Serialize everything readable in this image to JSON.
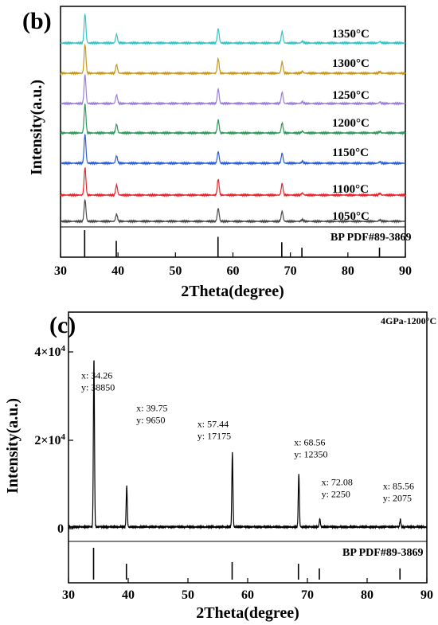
{
  "chart_data": [
    {
      "panel": "(b)",
      "type": "line",
      "xlabel": "2Theta(degree)",
      "ylabel": "Intensity(a.u.)",
      "xlim": [
        30,
        90
      ],
      "x_ticks": [
        "30",
        "40",
        "50",
        "60",
        "70",
        "80",
        "90"
      ],
      "peaks_2theta": [
        34.26,
        39.75,
        57.44,
        68.56,
        72.08,
        85.56
      ],
      "series": [
        {
          "name": "1050°C",
          "color": "#4a4a4a",
          "peak_heights": [
            0.75,
            0.25,
            0.45,
            0.35,
            0.06,
            0.05
          ]
        },
        {
          "name": "1100°C",
          "color": "#e8262b",
          "peak_heights": [
            0.95,
            0.35,
            0.55,
            0.4,
            0.07,
            0.06
          ]
        },
        {
          "name": "1150°C",
          "color": "#2e5fd4",
          "peak_heights": [
            1.0,
            0.25,
            0.4,
            0.35,
            0.06,
            0.05
          ]
        },
        {
          "name": "1200°C",
          "color": "#2e9a5a",
          "peak_heights": [
            1.0,
            0.3,
            0.45,
            0.35,
            0.06,
            0.05
          ]
        },
        {
          "name": "1250°C",
          "color": "#9b7fd8",
          "peak_heights": [
            1.0,
            0.3,
            0.5,
            0.4,
            0.06,
            0.05
          ]
        },
        {
          "name": "1300°C",
          "color": "#c8981c",
          "peak_heights": [
            1.0,
            0.3,
            0.5,
            0.4,
            0.06,
            0.05
          ]
        },
        {
          "name": "1350°C",
          "color": "#36c5c5",
          "peak_heights": [
            1.0,
            0.3,
            0.5,
            0.4,
            0.06,
            0.05
          ]
        }
      ],
      "reference": {
        "name": "BP PDF#89-3869",
        "positions": [
          34.2,
          39.7,
          57.4,
          68.5,
          72.0,
          85.5
        ],
        "heights": [
          1.0,
          0.6,
          0.75,
          0.55,
          0.35,
          0.35
        ]
      }
    },
    {
      "panel": "(c)",
      "type": "line",
      "xlabel": "2Theta(degree)",
      "ylabel": "Intensity(a.u.)",
      "xlim": [
        30,
        90
      ],
      "ylim": [
        0,
        40000
      ],
      "x_ticks": [
        "30",
        "40",
        "50",
        "60",
        "70",
        "80",
        "90"
      ],
      "y_ticks": [
        {
          "value": 0,
          "mantissa": "0",
          "exponent": ""
        },
        {
          "value": 20000,
          "mantissa": "2×10",
          "exponent": "4"
        },
        {
          "value": 40000,
          "mantissa": "4×10",
          "exponent": "4"
        }
      ],
      "sample": "4GPa-1200°C",
      "series": [
        {
          "name": "4GPa-1200°C",
          "color": "#000000"
        }
      ],
      "peaks": [
        {
          "x": 34.26,
          "y": 38850,
          "x_text": "x: 34.26",
          "y_text": "y: 38850"
        },
        {
          "x": 39.75,
          "y": 9650,
          "x_text": "x: 39.75",
          "y_text": "y: 9650"
        },
        {
          "x": 57.44,
          "y": 17175,
          "x_text": "x: 57.44",
          "y_text": "y: 17175"
        },
        {
          "x": 68.56,
          "y": 12350,
          "x_text": "x: 68.56",
          "y_text": "y: 12350"
        },
        {
          "x": 72.08,
          "y": 2250,
          "x_text": "x: 72.08",
          "y_text": "y: 2250"
        },
        {
          "x": 85.56,
          "y": 2075,
          "x_text": "x: 85.56",
          "y_text": "y: 2075"
        }
      ],
      "reference": {
        "name": "BP PDF#89-3869",
        "positions": [
          34.2,
          39.7,
          57.4,
          68.5,
          72.0,
          85.5
        ],
        "heights": [
          1.0,
          0.5,
          0.55,
          0.5,
          0.35,
          0.35
        ]
      }
    }
  ]
}
